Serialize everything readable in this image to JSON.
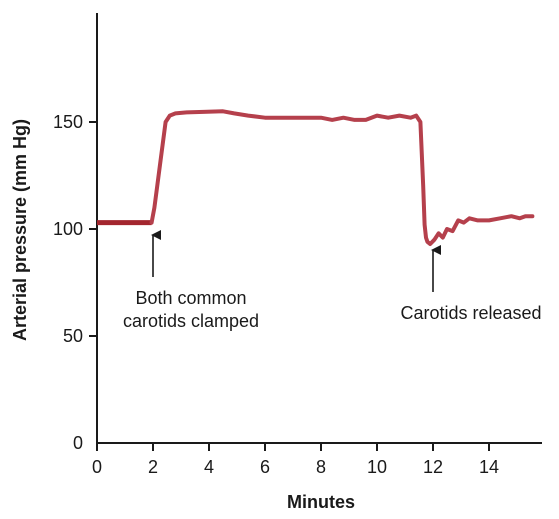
{
  "chart_data": {
    "type": "line",
    "title": "",
    "xlabel": "Minutes",
    "ylabel": "Arterial pressure (mm Hg)",
    "xlim": [
      0,
      16
    ],
    "ylim": [
      0,
      200
    ],
    "x_ticks": [
      0,
      2,
      4,
      6,
      8,
      10,
      12,
      14
    ],
    "y_ticks": [
      0,
      50,
      100,
      150
    ],
    "grid": false,
    "legend": "none",
    "colors": {
      "line": "#b5404c",
      "baseline": "#a3262e",
      "axis": "#1a1a1a"
    },
    "baseline_segment": {
      "x": [
        0,
        1.95
      ],
      "y": [
        103,
        103
      ]
    },
    "series": [
      {
        "x": [
          1.95,
          2.05,
          2.15,
          2.25,
          2.35,
          2.45,
          2.6,
          2.8,
          3.2,
          3.8,
          4.5,
          4.9,
          5.4,
          6.0,
          7.0,
          8.0,
          8.4,
          8.8,
          9.2,
          9.6,
          10.0,
          10.4,
          10.8,
          11.2,
          11.4,
          11.55,
          11.65,
          11.7,
          11.75,
          11.8,
          11.9,
          12.05,
          12.2,
          12.35,
          12.5,
          12.7,
          12.9,
          13.1,
          13.3,
          13.6,
          14.0,
          14.4,
          14.8,
          15.1,
          15.3,
          15.55
        ],
        "y": [
          103,
          110,
          120,
          130,
          140,
          150,
          153,
          154,
          154.5,
          154.7,
          155,
          154,
          153,
          152,
          152,
          152,
          151,
          152,
          151,
          151,
          153,
          152,
          153,
          152,
          153,
          150,
          120,
          102,
          96,
          94,
          93,
          95,
          98,
          96,
          100,
          99,
          104,
          103,
          105,
          104,
          104,
          105,
          106,
          105,
          106,
          106
        ]
      }
    ],
    "annotations": [
      {
        "lines": [
          "Both common",
          "carotids clamped"
        ],
        "x": 2.0,
        "y_tip": 100
      },
      {
        "lines": [
          "Carotids released"
        ],
        "x": 12.0,
        "y_tip": 93
      }
    ]
  }
}
